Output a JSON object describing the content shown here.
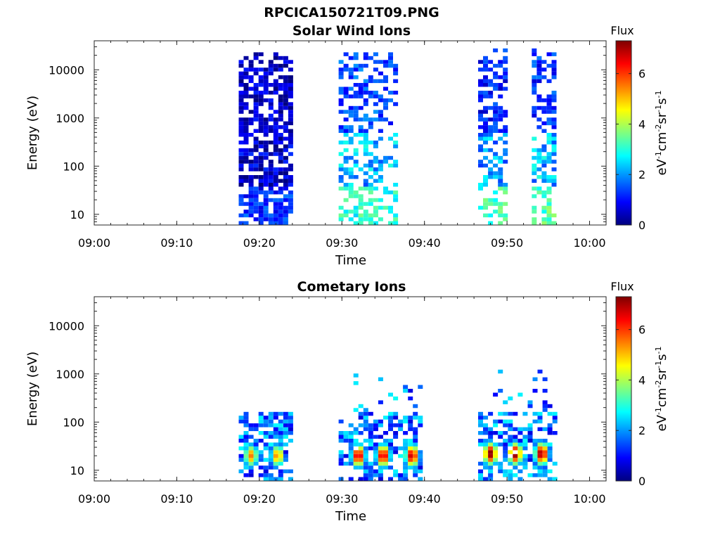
{
  "figure": {
    "title": "RPCICA150721T09.PNG"
  },
  "colormap": [
    "#00007f",
    "#0000ff",
    "#007fff",
    "#00ffff",
    "#7fff7f",
    "#ffff00",
    "#ff7f00",
    "#ff0000",
    "#7f0000"
  ],
  "chart_data": [
    {
      "type": "heatmap",
      "title": "Solar Wind Ions",
      "xlabel": "Time",
      "ylabel": "Energy (eV)",
      "yscale": "log",
      "ylim": [
        6,
        40000
      ],
      "xlim": [
        "09:00",
        "10:02"
      ],
      "x_ticks": [
        "09:00",
        "09:10",
        "09:20",
        "09:30",
        "09:40",
        "09:50",
        "10:00"
      ],
      "y_ticks": [
        "10",
        "100",
        "1000",
        "10000"
      ],
      "colorbar": {
        "title": "Flux",
        "unit_base": [
          "eV",
          "cm",
          "sr",
          "s"
        ],
        "unit_exp": [
          "-1",
          "-2",
          "-1",
          "-1"
        ],
        "ticks": [
          "0",
          "2",
          "4",
          "6"
        ],
        "range": [
          0,
          7.3
        ]
      },
      "bursts": [
        {
          "start": "09:17.5",
          "end": "09:23.8",
          "low_energy_flux": 1.2,
          "mid_flux": 0.5,
          "high_flux": 0.3,
          "min_energy": 6,
          "max_energy": 25000,
          "density": 0.7
        },
        {
          "start": "09:29.6",
          "end": "09:36.6",
          "low_energy_flux": 3.0,
          "mid_flux": 2.2,
          "high_flux": 1.2,
          "min_energy": 6,
          "max_energy": 30000,
          "density": 0.45
        },
        {
          "start": "09:46.5",
          "end": "09:49.6",
          "low_energy_flux": 3.2,
          "mid_flux": 2.0,
          "high_flux": 0.8,
          "min_energy": 6,
          "max_energy": 35000,
          "density": 0.55
        },
        {
          "start": "09:53.0",
          "end": "09:55.8",
          "low_energy_flux": 3.3,
          "mid_flux": 2.2,
          "high_flux": 1.0,
          "min_energy": 6,
          "max_energy": 30000,
          "density": 0.55
        }
      ]
    },
    {
      "type": "heatmap",
      "title": "Cometary Ions",
      "xlabel": "Time",
      "ylabel": "Energy (eV)",
      "yscale": "log",
      "ylim": [
        6,
        40000
      ],
      "xlim": [
        "09:00",
        "10:02"
      ],
      "x_ticks": [
        "09:00",
        "09:10",
        "09:20",
        "09:30",
        "09:40",
        "09:50",
        "10:00"
      ],
      "y_ticks": [
        "10",
        "100",
        "1000",
        "10000"
      ],
      "colorbar": {
        "title": "Flux",
        "unit_base": [
          "eV",
          "cm",
          "sr",
          "s"
        ],
        "unit_exp": [
          "-1",
          "-2",
          "-1",
          "-1"
        ],
        "ticks": [
          "0",
          "2",
          "4",
          "6"
        ],
        "range": [
          0,
          7.3
        ]
      },
      "bursts": [
        {
          "start": "09:17.5",
          "end": "09:23.8",
          "peak_flux": 5.5,
          "peak_energy": 20,
          "peak_times": [
            "09:19.0",
            "09:22.2"
          ],
          "min_energy": 6,
          "max_energy": 150,
          "density": 0.6
        },
        {
          "start": "09:29.6",
          "end": "09:39.6",
          "peak_flux": 7.0,
          "peak_energy": 20,
          "peak_times": [
            "09:32.0",
            "09:35.0",
            "09:38.5"
          ],
          "min_energy": 6,
          "max_energy": 1200,
          "density": 0.45
        },
        {
          "start": "09:46.5",
          "end": "09:55.8",
          "peak_flux": 7.3,
          "peak_energy": 22,
          "peak_times": [
            "09:48.0",
            "09:51.0",
            "09:54.2"
          ],
          "min_energy": 6,
          "max_energy": 1300,
          "density": 0.5
        }
      ]
    }
  ]
}
